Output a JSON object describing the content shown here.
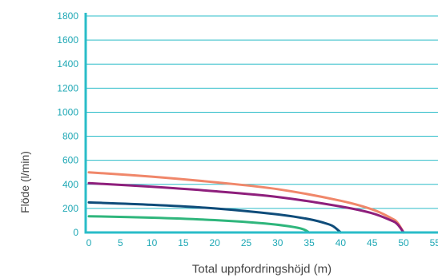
{
  "chart_data": {
    "type": "line",
    "title": "",
    "xlabel": "Total uppfordringshöjd (m)",
    "ylabel": "Flöde (l/min)",
    "xlim": [
      0,
      55
    ],
    "ylim": [
      0,
      1800
    ],
    "x_ticks": [
      "0",
      "5",
      "10",
      "15",
      "20",
      "25",
      "30",
      "35",
      "40",
      "45",
      "50",
      "55"
    ],
    "y_ticks": [
      "0",
      "200",
      "400",
      "600",
      "800",
      "1000",
      "1200",
      "1400",
      "1600",
      "1800"
    ],
    "grid": "horizontal",
    "colors": {
      "axis": "#2ABCC8",
      "tick_text": "#1FA8B5",
      "grid": "#2ABCC8"
    },
    "series": [
      {
        "color": "#F0876A",
        "x": [
          0,
          10,
          20,
          30,
          40,
          45,
          48,
          49,
          50
        ],
        "y": [
          500,
          464,
          418,
          360,
          264,
          192,
          120,
          84,
          0
        ]
      },
      {
        "color": "#8E1F7C",
        "x": [
          0,
          10,
          20,
          30,
          40,
          45,
          48,
          49,
          50
        ],
        "y": [
          410,
          380,
          343,
          295,
          216,
          160,
          100,
          70,
          0
        ]
      },
      {
        "color": "#0F4C7A",
        "x": [
          0,
          10,
          20,
          30,
          35,
          38,
          39,
          40
        ],
        "y": [
          250,
          230,
          200,
          150,
          110,
          70,
          45,
          0
        ]
      },
      {
        "color": "#2FB67C",
        "x": [
          0,
          10,
          20,
          28,
          32,
          34,
          35
        ],
        "y": [
          135,
          123,
          103,
          75,
          50,
          28,
          0
        ]
      }
    ]
  }
}
